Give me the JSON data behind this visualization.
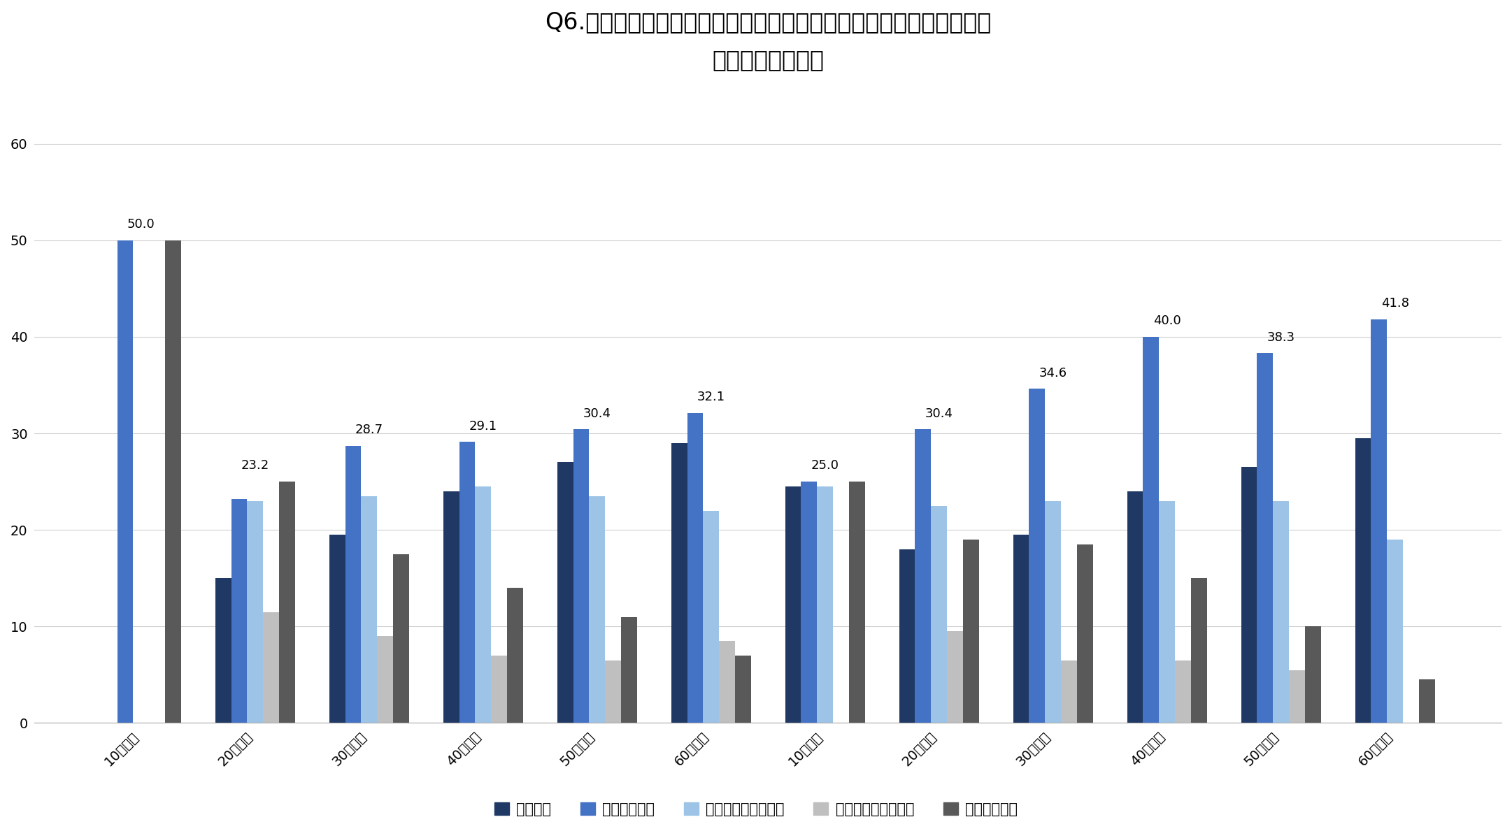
{
  "title_line1": "Q6.子どもたちが日本文化に触れる学びの場として、江戸城天守があ",
  "title_line2": "るのは良いことだ",
  "categories": [
    "10代男性",
    "20代男性",
    "30代男性",
    "40代男性",
    "50代男性",
    "60代男性",
    "10代女性",
    "20代女性",
    "30代女性",
    "40代女性",
    "50代女性",
    "60代女性"
  ],
  "series_labels": [
    "そう思う",
    "ややそう思う",
    "どちらともいえない",
    "あまりそう思わない",
    "そう思わない"
  ],
  "colors": [
    "#1f3864",
    "#4472c4",
    "#9dc3e6",
    "#bfbfbf",
    "#595959"
  ],
  "data": {
    "そう思う": [
      0,
      15.0,
      19.5,
      24.0,
      27.0,
      29.0,
      24.5,
      18.0,
      19.5,
      24.0,
      26.5,
      29.5
    ],
    "ややそう思う": [
      50.0,
      23.2,
      28.7,
      29.1,
      30.4,
      32.1,
      25.0,
      30.4,
      34.6,
      40.0,
      38.3,
      41.8
    ],
    "どちらともいえない": [
      0,
      23.0,
      23.5,
      24.5,
      23.5,
      22.0,
      24.5,
      22.5,
      23.0,
      23.0,
      23.0,
      19.0
    ],
    "あまりそう思わない": [
      0,
      11.5,
      9.0,
      7.0,
      6.5,
      8.5,
      0,
      9.5,
      6.5,
      6.5,
      5.5,
      0
    ],
    "そう思わない": [
      50.0,
      25.0,
      17.5,
      14.0,
      11.0,
      7.0,
      25.0,
      19.0,
      18.5,
      15.0,
      10.0,
      4.5
    ]
  },
  "peak_labels": [
    50.0,
    23.2,
    28.7,
    29.1,
    30.4,
    32.1,
    25.0,
    30.4,
    34.6,
    40.0,
    38.3,
    41.8
  ],
  "ylim": [
    0,
    65
  ],
  "yticks": [
    0,
    10,
    20,
    30,
    40,
    50,
    60
  ],
  "background_color": "#ffffff",
  "title_fontsize": 24,
  "legend_fontsize": 15,
  "tick_fontsize": 14,
  "label_fontsize": 13,
  "bar_width": 0.14
}
